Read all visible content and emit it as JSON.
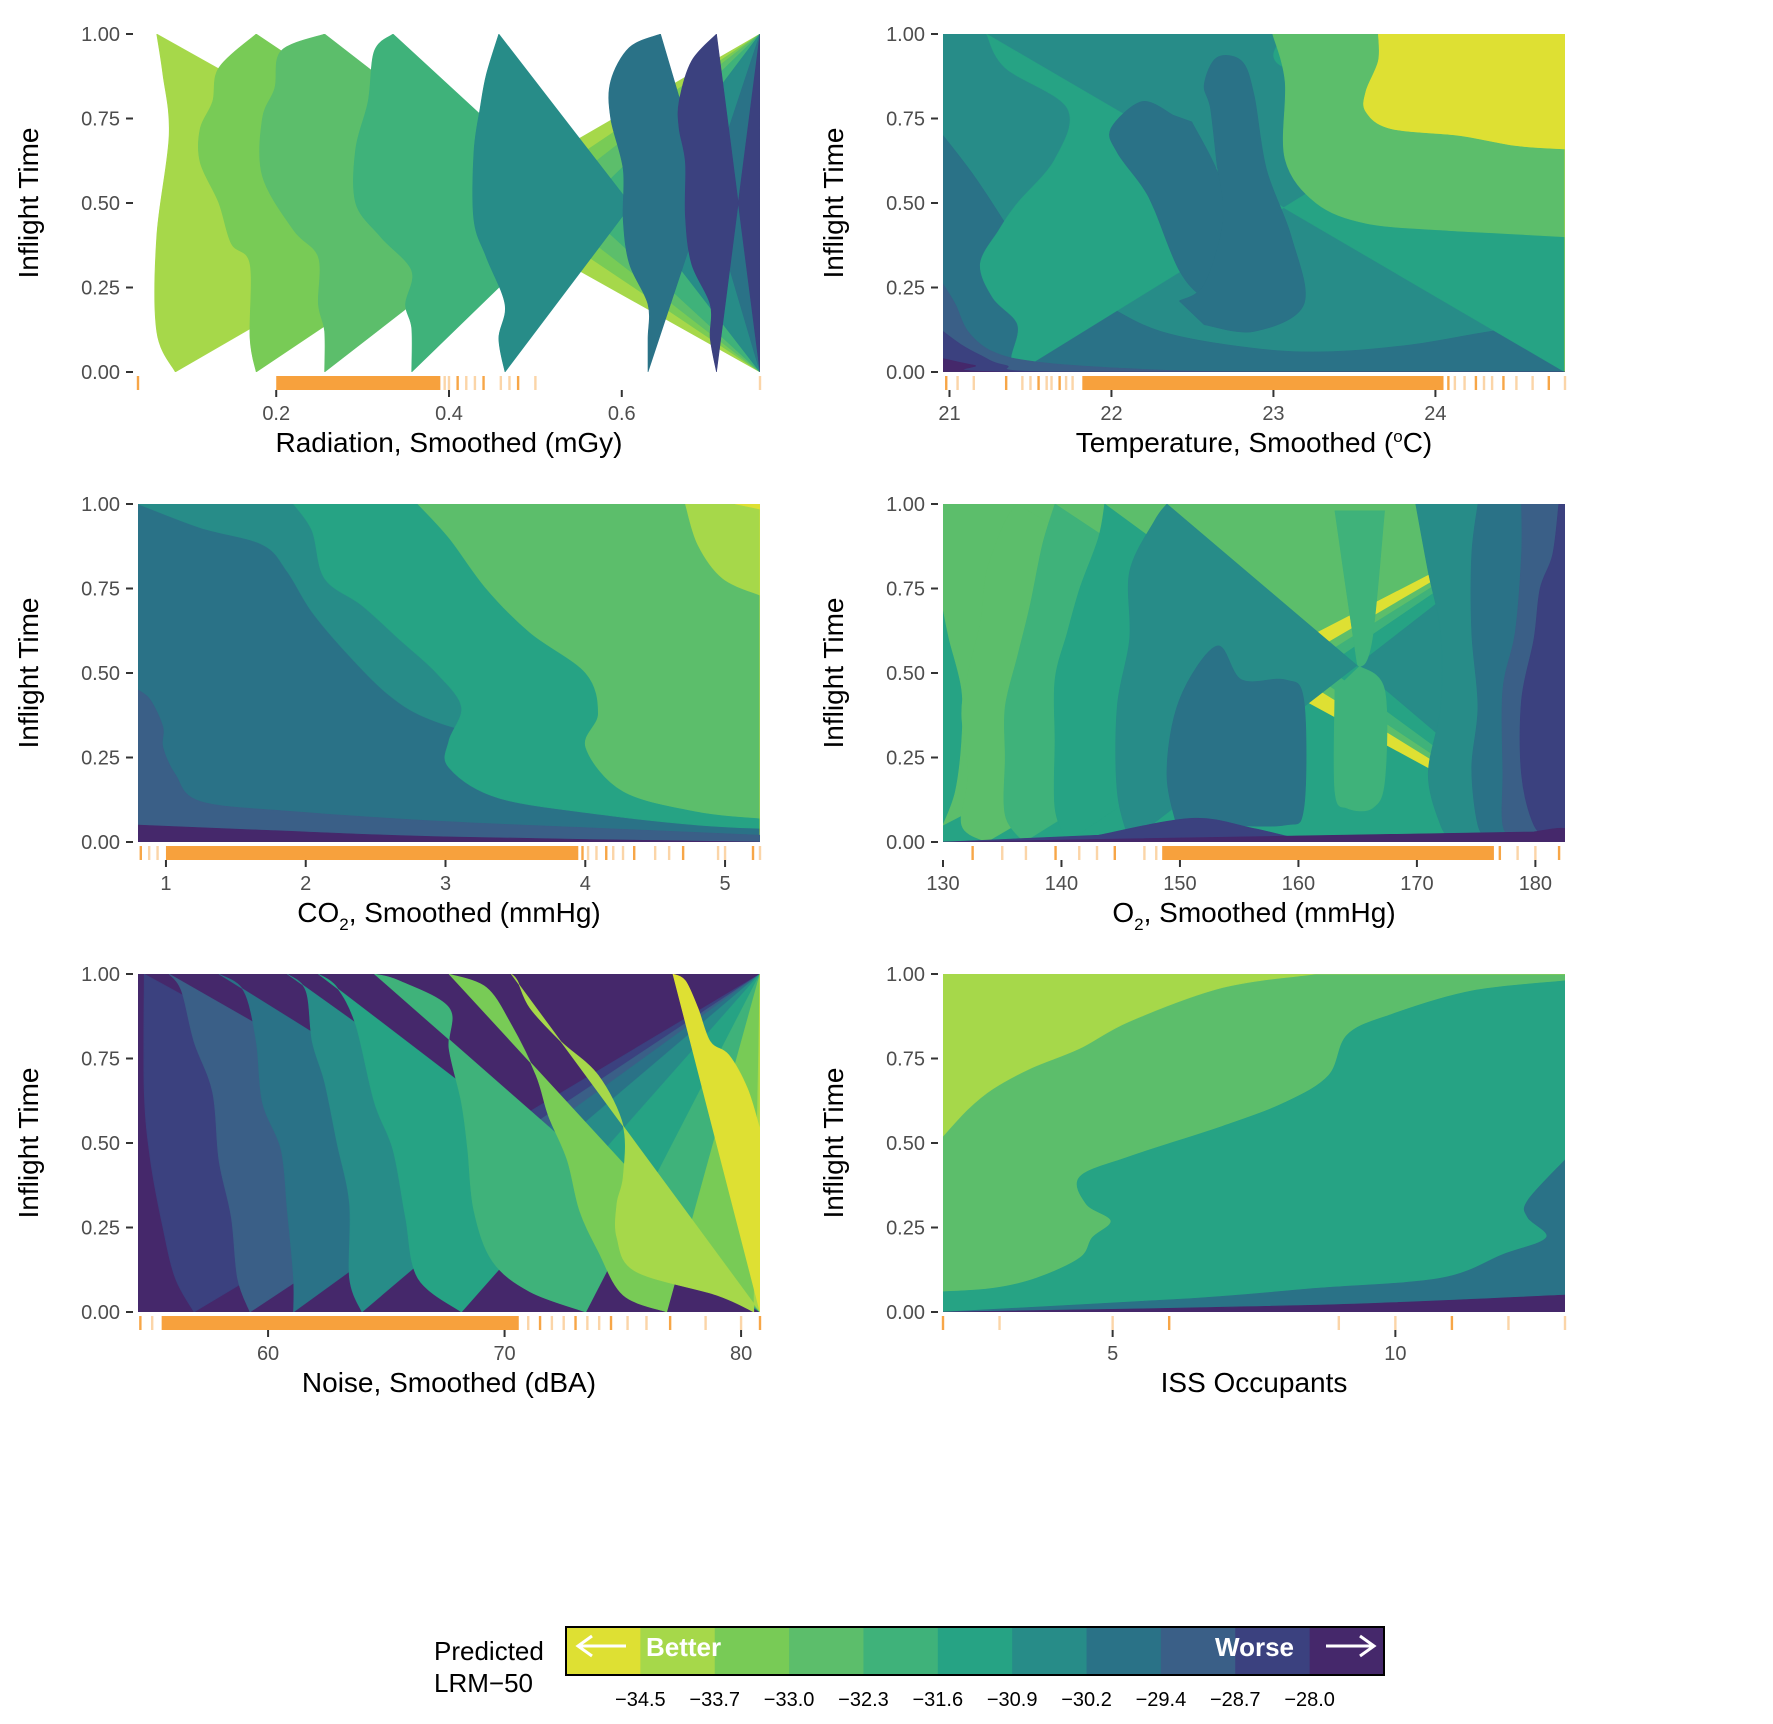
{
  "chart_data": [
    {
      "type": "heatmap",
      "xlabel": "Radiation, Smoothed (mGy)",
      "ylabel": "Inflight Time",
      "xlim": [
        0.04,
        0.76
      ],
      "ylim": [
        0,
        1
      ],
      "xticks": [
        {
          "value": 0.2,
          "label": "0.2"
        },
        {
          "value": 0.4,
          "label": "0.4"
        },
        {
          "value": 0.6,
          "label": "0.6"
        }
      ],
      "yticks": [
        {
          "value": 0,
          "label": "0.00"
        },
        {
          "value": 0.25,
          "label": "0.25"
        },
        {
          "value": 0.5,
          "label": "0.50"
        },
        {
          "value": 0.75,
          "label": "0.75"
        },
        {
          "value": 1,
          "label": "1.00"
        }
      ],
      "rug": {
        "dense": [
          [
            0.2,
            0.39
          ]
        ],
        "ticks": [
          0.04,
          0.395,
          0.4,
          0.41,
          0.42,
          0.43,
          0.44,
          0.46,
          0.47,
          0.48,
          0.5,
          0.76
        ]
      }
    },
    {
      "type": "heatmap",
      "xlabel": "Temperature, Smoothed (°C)",
      "ylabel": "Inflight Time",
      "xlim": [
        20.96,
        24.8
      ],
      "ylim": [
        0,
        1
      ],
      "xticks": [
        {
          "value": 21,
          "label": "21"
        },
        {
          "value": 22,
          "label": "22"
        },
        {
          "value": 23,
          "label": "23"
        },
        {
          "value": 24,
          "label": "24"
        }
      ],
      "yticks": [
        {
          "value": 0,
          "label": "0.00"
        },
        {
          "value": 0.25,
          "label": "0.25"
        },
        {
          "value": 0.5,
          "label": "0.50"
        },
        {
          "value": 0.75,
          "label": "0.75"
        },
        {
          "value": 1,
          "label": "1.00"
        }
      ],
      "rug": {
        "dense": [
          [
            21.82,
            24.05
          ]
        ],
        "ticks": [
          20.98,
          21.05,
          21.15,
          21.35,
          21.45,
          21.5,
          21.55,
          21.6,
          21.63,
          21.68,
          21.72,
          21.76,
          24.08,
          24.12,
          24.18,
          24.25,
          24.3,
          24.35,
          24.42,
          24.5,
          24.6,
          24.7,
          24.8
        ]
      }
    },
    {
      "type": "heatmap",
      "xlabel": "CO2, Smoothed (mmHg)",
      "ylabel": "Inflight Time",
      "xlim": [
        0.8,
        5.25
      ],
      "ylim": [
        0,
        1
      ],
      "xticks": [
        {
          "value": 1,
          "label": "1"
        },
        {
          "value": 2,
          "label": "2"
        },
        {
          "value": 3,
          "label": "3"
        },
        {
          "value": 4,
          "label": "4"
        },
        {
          "value": 5,
          "label": "5"
        }
      ],
      "yticks": [
        {
          "value": 0,
          "label": "0.00"
        },
        {
          "value": 0.25,
          "label": "0.25"
        },
        {
          "value": 0.5,
          "label": "0.50"
        },
        {
          "value": 0.75,
          "label": "0.75"
        },
        {
          "value": 1,
          "label": "1.00"
        }
      ],
      "rug": {
        "dense": [
          [
            1.0,
            3.95
          ]
        ],
        "ticks": [
          0.82,
          0.88,
          0.94,
          3.98,
          4.02,
          4.08,
          4.15,
          4.2,
          4.27,
          4.35,
          4.5,
          4.6,
          4.7,
          4.95,
          5.0,
          5.2,
          5.25
        ]
      }
    },
    {
      "type": "heatmap",
      "xlabel": "O2, Smoothed (mmHg)",
      "ylabel": "Inflight Time",
      "xlim": [
        130,
        182.5
      ],
      "ylim": [
        0,
        1
      ],
      "xticks": [
        {
          "value": 130,
          "label": "130"
        },
        {
          "value": 140,
          "label": "140"
        },
        {
          "value": 150,
          "label": "150"
        },
        {
          "value": 160,
          "label": "160"
        },
        {
          "value": 170,
          "label": "170"
        },
        {
          "value": 180,
          "label": "180"
        }
      ],
      "yticks": [
        {
          "value": 0,
          "label": "0.00"
        },
        {
          "value": 0.25,
          "label": "0.25"
        },
        {
          "value": 0.5,
          "label": "0.50"
        },
        {
          "value": 0.75,
          "label": "0.75"
        },
        {
          "value": 1,
          "label": "1.00"
        }
      ],
      "rug": {
        "dense": [
          [
            148.5,
            176.5
          ]
        ],
        "ticks": [
          132.5,
          135,
          137,
          139.5,
          141.5,
          143,
          144.5,
          147,
          148,
          177,
          178.5,
          180,
          182
        ]
      }
    },
    {
      "type": "heatmap",
      "xlabel": "Noise, Smoothed (dBA)",
      "ylabel": "Inflight Time",
      "xlim": [
        54.5,
        80.8
      ],
      "ylim": [
        0,
        1
      ],
      "xticks": [
        {
          "value": 60,
          "label": "60"
        },
        {
          "value": 70,
          "label": "70"
        },
        {
          "value": 80,
          "label": "80"
        }
      ],
      "yticks": [
        {
          "value": 0,
          "label": "0.00"
        },
        {
          "value": 0.25,
          "label": "0.25"
        },
        {
          "value": 0.5,
          "label": "0.50"
        },
        {
          "value": 0.75,
          "label": "0.75"
        },
        {
          "value": 1,
          "label": "1.00"
        }
      ],
      "rug": {
        "dense": [
          [
            55.5,
            70.6
          ]
        ],
        "ticks": [
          54.6,
          55.1,
          71,
          71.5,
          72,
          72.5,
          73,
          73.5,
          74,
          74.5,
          75.2,
          76,
          77,
          78.5,
          80,
          80.8
        ]
      }
    },
    {
      "type": "heatmap",
      "xlabel": "ISS Occupants",
      "ylabel": "Inflight Time",
      "xlim": [
        2,
        13
      ],
      "ylim": [
        0,
        1
      ],
      "xticks": [
        {
          "value": 5,
          "label": "5"
        },
        {
          "value": 10,
          "label": "10"
        }
      ],
      "yticks": [
        {
          "value": 0,
          "label": "0.00"
        },
        {
          "value": 0.25,
          "label": "0.25"
        },
        {
          "value": 0.5,
          "label": "0.50"
        },
        {
          "value": 0.75,
          "label": "0.75"
        },
        {
          "value": 1,
          "label": "1.00"
        }
      ],
      "rug": {
        "dense": [],
        "ticks": [
          2,
          3,
          5,
          6,
          9,
          10,
          11,
          12,
          13
        ]
      }
    }
  ],
  "legend": {
    "title_line1": "Predicted",
    "title_line2": "LRM−50",
    "better_label": "Better",
    "worse_label": "Worse",
    "breaks": [
      "−34.5",
      "−33.7",
      "−33.0",
      "−32.3",
      "−31.6",
      "−30.9",
      "−30.2",
      "−29.4",
      "−28.7",
      "−28.0"
    ]
  },
  "colors": {
    "bands": [
      "#dee033",
      "#a6d84a",
      "#78cb56",
      "#5cbe6b",
      "#3fb27a",
      "#26a384",
      "#278c88",
      "#2a7287",
      "#3a5f87",
      "#3b417f",
      "#45286b"
    ],
    "rug": "#f7a13d"
  }
}
